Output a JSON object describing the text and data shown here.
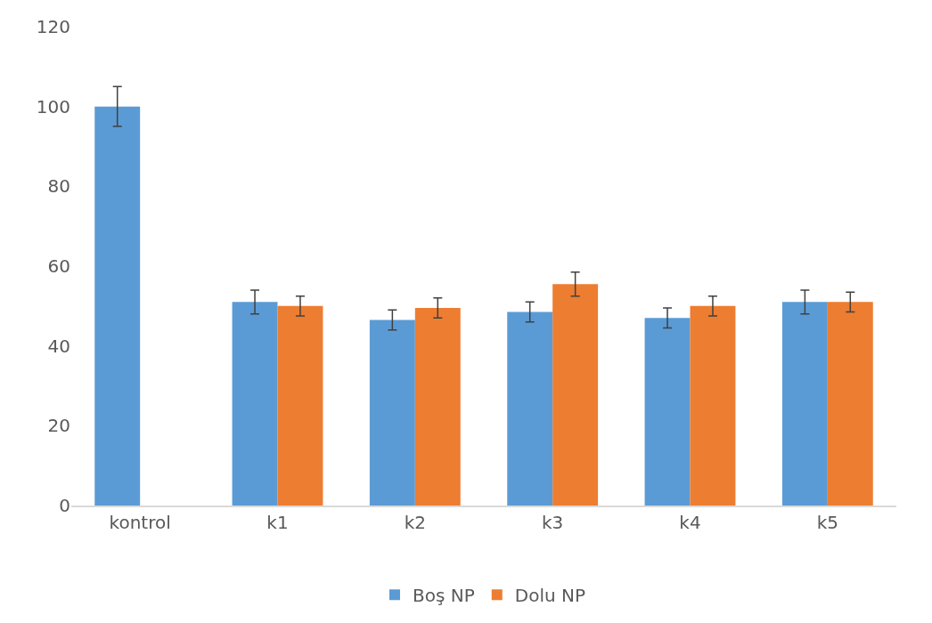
{
  "chart_data": {
    "type": "bar",
    "categories": [
      "kontrol",
      "k1",
      "k2",
      "k3",
      "k4",
      "k5"
    ],
    "series": [
      {
        "name": "Boş NP",
        "color": "#5b9bd5",
        "values": [
          100,
          51,
          46.5,
          48.5,
          47,
          51
        ],
        "errors": [
          5,
          3,
          2.5,
          2.5,
          2.5,
          3
        ]
      },
      {
        "name": "Dolu NP",
        "color": "#ed7d31",
        "values": [
          null,
          50,
          49.5,
          55.5,
          50,
          51
        ],
        "errors": [
          null,
          2.5,
          2.5,
          3,
          2.5,
          2.5
        ]
      }
    ],
    "ylim": [
      0,
      120
    ],
    "yticks": [
      0,
      20,
      40,
      60,
      80,
      100,
      120
    ],
    "grid": false,
    "legend": "bottom"
  }
}
